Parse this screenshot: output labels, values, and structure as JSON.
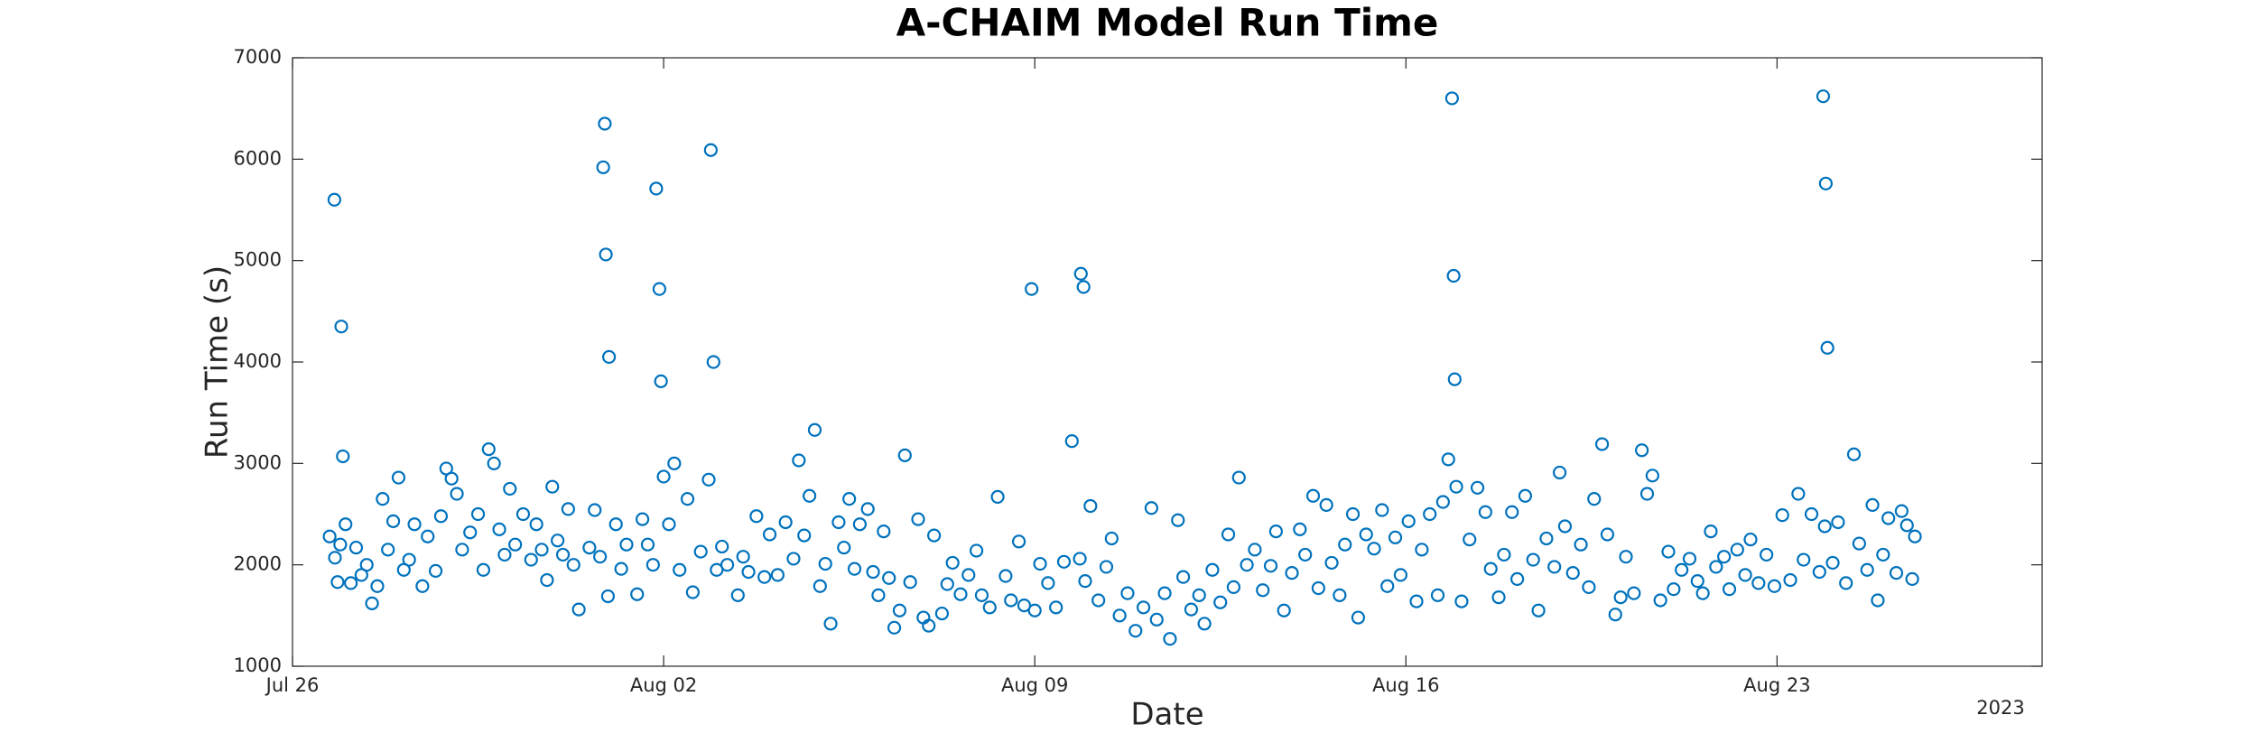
{
  "chart_data": {
    "type": "scatter",
    "title": "A-CHAIM Model Run Time",
    "x_label": "Date",
    "y_label": "Run Time (s)",
    "x_year_label": "2023",
    "xlim": [
      0,
      33
    ],
    "xticks": [
      {
        "value": 0,
        "label": "Jul 26"
      },
      {
        "value": 7,
        "label": "Aug 02"
      },
      {
        "value": 14,
        "label": "Aug 09"
      },
      {
        "value": 21,
        "label": "Aug 16"
      },
      {
        "value": 28,
        "label": "Aug 23"
      }
    ],
    "ylim": [
      1000,
      7000
    ],
    "yticks": [
      1000,
      2000,
      3000,
      4000,
      5000,
      6000,
      7000
    ],
    "grid": false,
    "marker": "open-circle",
    "series": [
      {
        "color": "#0072bd",
        "x": [
          0.79,
          0.92,
          0.95,
          5.89,
          5.86,
          5.91,
          5.97,
          6.86,
          6.92,
          6.95,
          7.89,
          7.94,
          13.94,
          14.87,
          14.92,
          21.87,
          21.9,
          21.92,
          28.87,
          28.92,
          28.95,
          0.7,
          0.8,
          0.85,
          0.9,
          1.0,
          1.1,
          1.2,
          1.3,
          1.4,
          1.5,
          1.6,
          1.7,
          1.8,
          1.9,
          2.0,
          2.1,
          2.2,
          2.3,
          2.45,
          2.55,
          2.7,
          2.8,
          2.9,
          3.0,
          3.1,
          3.2,
          3.35,
          3.5,
          3.6,
          3.7,
          3.8,
          3.9,
          4.0,
          4.1,
          4.2,
          4.35,
          4.5,
          4.6,
          4.7,
          4.8,
          4.9,
          5.0,
          5.1,
          5.2,
          5.3,
          5.4,
          5.6,
          5.7,
          5.8,
          5.95,
          6.1,
          6.2,
          6.3,
          6.5,
          6.6,
          6.7,
          6.8,
          7.0,
          7.1,
          7.2,
          7.3,
          7.45,
          7.55,
          7.7,
          7.85,
          8.0,
          8.1,
          8.2,
          8.4,
          8.5,
          8.6,
          8.75,
          8.9,
          9.0,
          9.15,
          9.3,
          9.45,
          9.55,
          9.65,
          9.75,
          9.85,
          9.95,
          10.05,
          10.15,
          10.3,
          10.4,
          10.5,
          10.6,
          10.7,
          10.85,
          10.95,
          11.05,
          11.15,
          11.25,
          11.35,
          11.45,
          11.55,
          11.65,
          11.8,
          11.9,
          12.0,
          12.1,
          12.25,
          12.35,
          12.45,
          12.6,
          12.75,
          12.9,
          13.0,
          13.15,
          13.3,
          13.45,
          13.55,
          13.7,
          13.8,
          14.0,
          14.1,
          14.25,
          14.4,
          14.55,
          14.7,
          14.85,
          14.95,
          15.05,
          15.2,
          15.35,
          15.45,
          15.6,
          15.75,
          15.9,
          16.05,
          16.2,
          16.3,
          16.45,
          16.55,
          16.7,
          16.8,
          16.95,
          17.1,
          17.2,
          17.35,
          17.5,
          17.65,
          17.75,
          17.85,
          18.0,
          18.15,
          18.3,
          18.45,
          18.55,
          18.7,
          18.85,
          19.0,
          19.1,
          19.25,
          19.35,
          19.5,
          19.6,
          19.75,
          19.85,
          20.0,
          20.1,
          20.25,
          20.4,
          20.55,
          20.65,
          20.8,
          20.9,
          21.05,
          21.2,
          21.3,
          21.45,
          21.6,
          21.7,
          21.8,
          21.95,
          22.05,
          22.2,
          22.35,
          22.5,
          22.6,
          22.75,
          22.85,
          23.0,
          23.1,
          23.25,
          23.4,
          23.5,
          23.65,
          23.8,
          23.9,
          24.0,
          24.15,
          24.3,
          24.45,
          24.55,
          24.7,
          24.8,
          24.95,
          25.05,
          25.15,
          25.3,
          25.45,
          25.55,
          25.65,
          25.8,
          25.95,
          26.05,
          26.2,
          26.35,
          26.5,
          26.6,
          26.75,
          26.85,
          27.0,
          27.1,
          27.25,
          27.4,
          27.5,
          27.65,
          27.8,
          27.95,
          28.1,
          28.25,
          28.4,
          28.5,
          28.65,
          28.8,
          28.9,
          29.05,
          29.15,
          29.3,
          29.45,
          29.55,
          29.7,
          29.8,
          29.9,
          30.0,
          30.1,
          30.25,
          30.35,
          30.45,
          30.55,
          30.6
        ],
        "y": [
          5600,
          4350,
          3070,
          6350,
          5920,
          5060,
          4050,
          5710,
          4720,
          3810,
          6090,
          4000,
          4720,
          4870,
          4740,
          6600,
          4850,
          3830,
          6620,
          5760,
          4140,
          2280,
          2070,
          1830,
          2200,
          2400,
          1820,
          2170,
          1900,
          2000,
          1620,
          1790,
          2650,
          2150,
          2430,
          2860,
          1950,
          2050,
          2400,
          1790,
          2280,
          1940,
          2480,
          2950,
          2850,
          2700,
          2150,
          2320,
          2500,
          1950,
          3140,
          3000,
          2350,
          2100,
          2750,
          2200,
          2500,
          2050,
          2400,
          2150,
          1850,
          2770,
          2240,
          2100,
          2550,
          2000,
          1560,
          2170,
          2540,
          2080,
          1690,
          2400,
          1960,
          2200,
          1710,
          2450,
          2200,
          2000,
          2870,
          2400,
          3000,
          1950,
          2650,
          1730,
          2130,
          2840,
          1950,
          2180,
          2000,
          1700,
          2080,
          1930,
          2480,
          1880,
          2300,
          1900,
          2420,
          2060,
          3030,
          2290,
          2680,
          3330,
          1790,
          2010,
          1420,
          2420,
          2170,
          2650,
          1960,
          2400,
          2550,
          1930,
          1700,
          2330,
          1870,
          1380,
          1550,
          3080,
          1830,
          2450,
          1480,
          1400,
          2290,
          1520,
          1810,
          2020,
          1710,
          1900,
          2140,
          1700,
          1580,
          2670,
          1890,
          1650,
          2230,
          1600,
          1550,
          2010,
          1820,
          1580,
          2030,
          3220,
          2060,
          1840,
          2580,
          1650,
          1980,
          2260,
          1500,
          1720,
          1350,
          1580,
          2560,
          1460,
          1720,
          1270,
          2440,
          1880,
          1560,
          1700,
          1420,
          1950,
          1630,
          2300,
          1780,
          2860,
          2000,
          2150,
          1750,
          1990,
          2330,
          1550,
          1920,
          2350,
          2100,
          2680,
          1770,
          2590,
          2020,
          1700,
          2200,
          2500,
          1480,
          2300,
          2160,
          2540,
          1790,
          2270,
          1900,
          2430,
          1640,
          2150,
          2500,
          1700,
          2620,
          3040,
          2770,
          1640,
          2250,
          2760,
          2520,
          1960,
          1680,
          2100,
          2520,
          1860,
          2680,
          2050,
          1550,
          2260,
          1980,
          2910,
          2380,
          1920,
          2200,
          1780,
          2650,
          3190,
          2300,
          1510,
          1680,
          2080,
          1720,
          3130,
          2700,
          2880,
          1650,
          2130,
          1760,
          1950,
          2060,
          1840,
          1720,
          2330,
          1980,
          2080,
          1760,
          2150,
          1900,
          2250,
          1820,
          2100,
          1790,
          2490,
          1850,
          2700,
          2050,
          2500,
          1930,
          2380,
          2020,
          2420,
          1820,
          3090,
          2210,
          1950,
          2590,
          1650,
          2100,
          2460,
          1920,
          2530,
          2390,
          1860,
          2280
        ]
      }
    ]
  }
}
